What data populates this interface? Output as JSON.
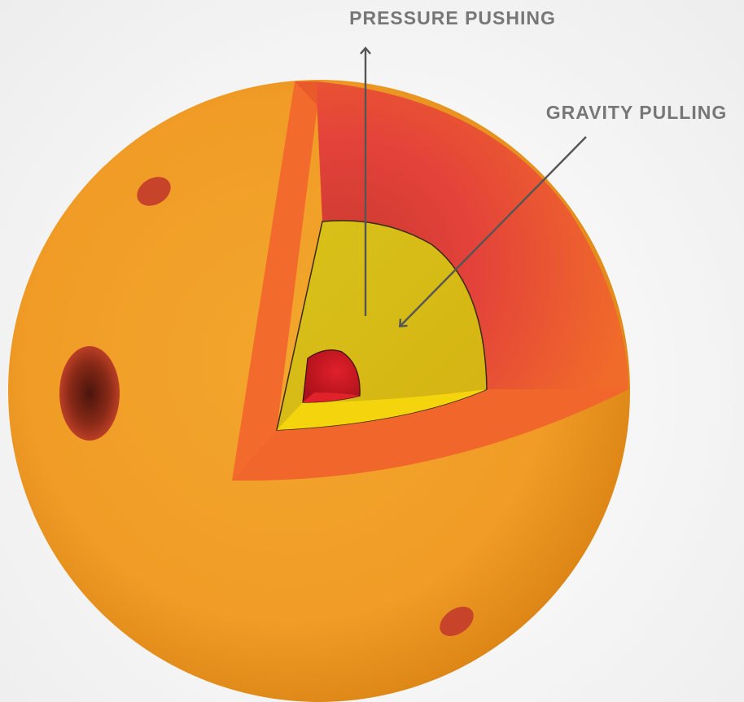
{
  "labels": {
    "pressure": "PRESSURE PUSHING",
    "gravity": "GRAVITY PULLING"
  },
  "colors": {
    "background": "#f2f2f2",
    "surface": "#f0a02a",
    "surface_dark": "#d97f14",
    "outer_layer_face": "#f26a2a",
    "outer_layer_inner": "#e23e38",
    "middle_layer": "#d8bd14",
    "middle_layer_floor": "#f2d40e",
    "core": "#c8161e",
    "sunspot": "#c9452a",
    "sunspot_dark": "#5a1a10",
    "label_text": "#777777",
    "arrow": "#555555"
  }
}
